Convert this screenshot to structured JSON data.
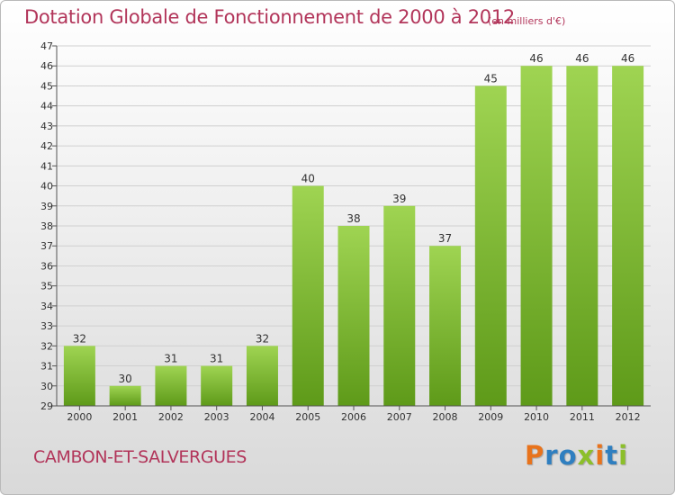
{
  "header": {
    "title": "Dotation Globale de Fonctionnement de 2000 à 2012",
    "unit_note": "(en milliers d'€)"
  },
  "footer": {
    "commune": "CAMBON-ET-SALVERGUES",
    "logo_text": "Proxiti",
    "logo_colors": [
      "#e8731c",
      "#2f7fc0",
      "#2f7fc0",
      "#8cbf2a",
      "#e8731c",
      "#2f7fc0",
      "#8cbf2a"
    ]
  },
  "colors": {
    "title": "#b2355a",
    "bar_light": "#9fd452",
    "bar_dark": "#5e9a19",
    "grid": "#d0d0d0",
    "axis": "#555555"
  },
  "chart_data": {
    "type": "bar",
    "categories": [
      "2000",
      "2001",
      "2002",
      "2003",
      "2004",
      "2005",
      "2006",
      "2007",
      "2008",
      "2009",
      "2010",
      "2011",
      "2012"
    ],
    "values": [
      32,
      30,
      31,
      31,
      32,
      40,
      38,
      39,
      37,
      45,
      46,
      46,
      46
    ],
    "title": "Dotation Globale de Fonctionnement de 2000 à 2012",
    "subtitle": "(en milliers d'€)",
    "ylim": [
      29,
      47
    ],
    "yticks": [
      29,
      30,
      31,
      32,
      33,
      34,
      35,
      36,
      37,
      38,
      39,
      40,
      41,
      42,
      43,
      44,
      45,
      46,
      47
    ],
    "grid": true,
    "data_labels": true
  }
}
